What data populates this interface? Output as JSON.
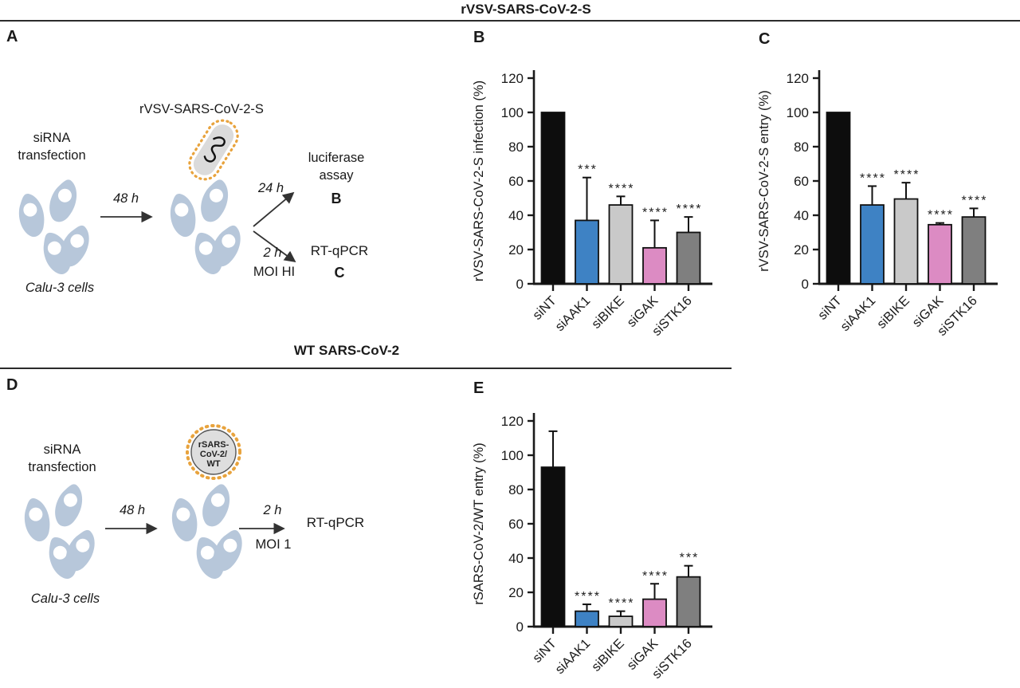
{
  "header": {
    "top_section_title": "rVSV-SARS-CoV-2-S",
    "bottom_section_title": "WT SARS-CoV-2"
  },
  "panel_a": {
    "label": "A",
    "virus_name": "rVSV-SARS-CoV-2-S",
    "treatment_line1": "siRNA",
    "treatment_line2": "transfection",
    "cell_line": "Calu-3 cells",
    "incubation_time": "48 h",
    "branch_top_time": "24 h",
    "branch_top_assay_line1": "luciferase",
    "branch_top_assay_line2": "assay",
    "branch_top_panel_ref": "B",
    "branch_bottom_time": "2 h",
    "branch_bottom_moi": "MOI HI",
    "branch_bottom_assay": "RT-qPCR",
    "branch_bottom_panel_ref": "C"
  },
  "panel_d": {
    "label": "D",
    "virus_name_line1": "rSARS-",
    "virus_name_line2": "CoV-2/",
    "virus_name_line3": "WT",
    "treatment_line1": "siRNA",
    "treatment_line2": "transfection",
    "cell_line": "Calu-3 cells",
    "incubation_time": "48 h",
    "infection_time": "2 h",
    "moi": "MOI 1",
    "assay": "RT-qPCR"
  },
  "chart_data": [
    {
      "panel_label": "B",
      "type": "bar",
      "title": "",
      "xlabel": "",
      "ylabel": "rVSV-SARS-CoV-2-S infection (%)",
      "categories": [
        "siNT",
        "siAAK1",
        "siBIKE",
        "siGAK",
        "siSTK16"
      ],
      "values": [
        100,
        37,
        46,
        21,
        30
      ],
      "errors_upper": [
        0,
        25,
        5,
        16,
        9
      ],
      "significance": [
        "",
        "***",
        "****",
        "****",
        "****"
      ],
      "bar_colors": [
        "#0D0D0D",
        "#3E82C4",
        "#C9C9C9",
        "#DC8BC3",
        "#7F7F7F"
      ],
      "ylim": [
        0,
        120
      ],
      "yticks": [
        0,
        20,
        40,
        60,
        80,
        100,
        120
      ],
      "grid": false,
      "legend": "none"
    },
    {
      "panel_label": "C",
      "type": "bar",
      "title": "",
      "xlabel": "",
      "ylabel": "rVSV-SARS-CoV-2-S entry (%)",
      "categories": [
        "siNT",
        "siAAK1",
        "siBIKE",
        "siGAK",
        "siSTK16"
      ],
      "values": [
        100,
        46,
        49.5,
        34.5,
        39
      ],
      "errors_upper": [
        0,
        11,
        9.5,
        1,
        5
      ],
      "significance": [
        "",
        "****",
        "****",
        "****",
        "****"
      ],
      "bar_colors": [
        "#0D0D0D",
        "#3E82C4",
        "#C9C9C9",
        "#DC8BC3",
        "#7F7F7F"
      ],
      "ylim": [
        0,
        120
      ],
      "yticks": [
        0,
        20,
        40,
        60,
        80,
        100,
        120
      ],
      "grid": false,
      "legend": "none"
    },
    {
      "panel_label": "E",
      "type": "bar",
      "title": "",
      "xlabel": "",
      "ylabel": "rSARS-CoV-2/WT entry (%)",
      "categories": [
        "siNT",
        "siAAK1",
        "siBIKE",
        "siGAK",
        "siSTK16"
      ],
      "values": [
        93,
        9,
        6,
        16,
        29
      ],
      "errors_upper": [
        21,
        4,
        3,
        9,
        6.5
      ],
      "significance": [
        "",
        "****",
        "****",
        "****",
        "***"
      ],
      "bar_colors": [
        "#0D0D0D",
        "#3E82C4",
        "#C9C9C9",
        "#DC8BC3",
        "#7F7F7F"
      ],
      "ylim": [
        0,
        120
      ],
      "yticks": [
        0,
        20,
        40,
        60,
        80,
        100,
        120
      ],
      "grid": false,
      "legend": "none"
    }
  ]
}
